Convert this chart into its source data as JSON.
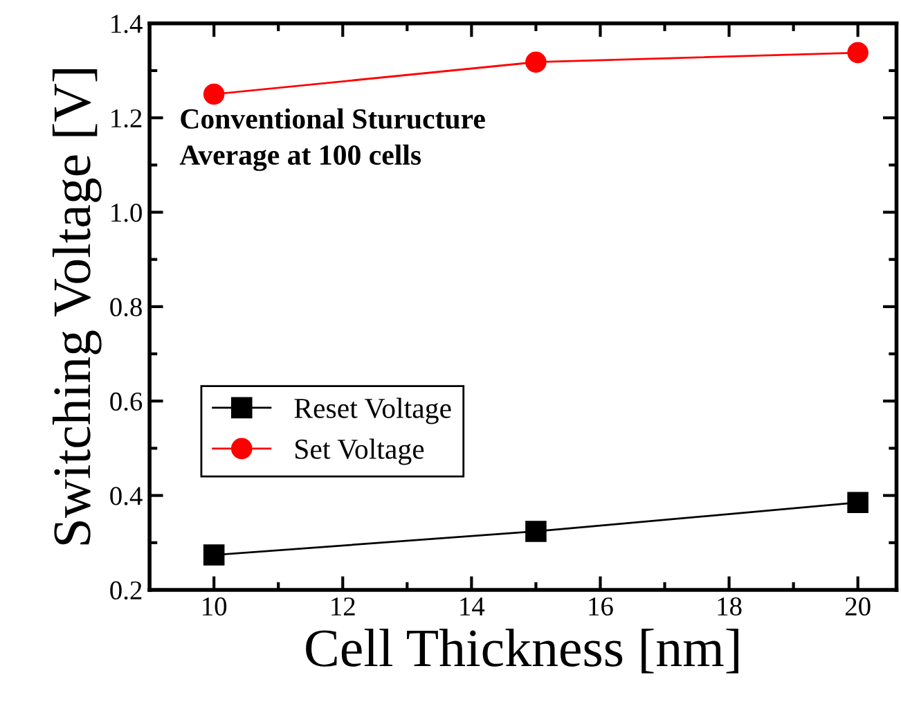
{
  "chart_data": {
    "type": "line",
    "xlabel": "Cell Thickness [nm]",
    "ylabel": "Switching Voltage [V]",
    "x": [
      10,
      15,
      20
    ],
    "series": [
      {
        "name": "Reset Voltage",
        "color": "#000000",
        "marker": "square",
        "values": [
          0.274,
          0.324,
          0.385
        ]
      },
      {
        "name": "Set Voltage",
        "color": "#ff0000",
        "marker": "circle",
        "values": [
          1.25,
          1.318,
          1.338
        ]
      }
    ],
    "xlim": [
      9,
      20.6
    ],
    "xticks": [
      10,
      12,
      14,
      16,
      18,
      20
    ],
    "ylim": [
      0.2,
      1.4
    ],
    "yticks": [
      0.2,
      0.4,
      0.6,
      0.8,
      {
        "value": 1.0,
        "label": "1.0"
      },
      1.2,
      1.4
    ],
    "annotations": [
      "Conventional Sturucture\nAverage at 100 cells"
    ],
    "legend": "left",
    "grid": false,
    "line_style": "solid"
  }
}
